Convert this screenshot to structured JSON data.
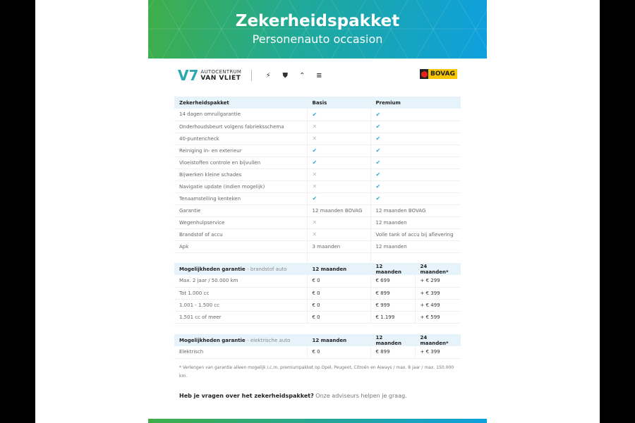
{
  "header": {
    "title": "Zekerheidspakket",
    "subtitle": "Personenauto occasion"
  },
  "logos": {
    "dealer_line1": "AUTOCENTRUM",
    "dealer_line2": "VAN VLIET",
    "brands": [
      "opel-logo",
      "peugeot-logo",
      "citroen-logo",
      "aiways-logo"
    ],
    "bovag": "BOVAG"
  },
  "package_table": {
    "headers": [
      "Zekerheidspakket",
      "Basis",
      "Premium"
    ],
    "rows": [
      {
        "label": "14 dagen omruilgarantie",
        "basis": "check",
        "premium": "check"
      },
      {
        "label": "Onderhoudsbeurt volgens fabrieksschema",
        "basis": "cross",
        "premium": "check"
      },
      {
        "label": "40-puntencheck",
        "basis": "cross",
        "premium": "check"
      },
      {
        "label": "Reiniging in- en exterieur",
        "basis": "check",
        "premium": "check"
      },
      {
        "label": "Vloeistoffen controle en bijvullen",
        "basis": "check",
        "premium": "check"
      },
      {
        "label": "Bijwerken kleine schades",
        "basis": "cross",
        "premium": "check"
      },
      {
        "label": "Navigatie update (indien mogelijk)",
        "basis": "cross",
        "premium": "check"
      },
      {
        "label": "Tenaamstelling kenteken",
        "basis": "check",
        "premium": "check"
      },
      {
        "label": "Garantie",
        "basis": "12 maanden BOVAG",
        "premium": "12 maanden BOVAG"
      },
      {
        "label": "Wegenhulpservice",
        "basis": "cross",
        "premium": "12 maanden"
      },
      {
        "label": "Brandstof of accu",
        "basis": "cross",
        "premium": "Volle tank of accu bij aflevering"
      },
      {
        "label": "Apk",
        "basis": "3 maanden",
        "premium": "12 maanden"
      }
    ]
  },
  "fuel_table": {
    "title": "Mogelijkheden garantie",
    "subtitle": "- brandstof auto",
    "headers": [
      "12 maanden",
      "12 maanden",
      "24 maanden*"
    ],
    "rows": [
      [
        "Max. 2 jaar / 50.000 km",
        "€ 0",
        "€ 699",
        "+ € 299"
      ],
      [
        "Tot 1.000 cc",
        "€ 0",
        "€ 899",
        "+ € 399"
      ],
      [
        "1.001 - 1.500 cc",
        "€ 0",
        "€ 999",
        "+ € 499"
      ],
      [
        "1.501 cc of meer",
        "€ 0",
        "€ 1.199",
        "+ € 599"
      ]
    ]
  },
  "electric_table": {
    "title": "Mogelijkheden garantie",
    "subtitle": "- elektrische auto",
    "headers": [
      "12 maanden",
      "12 maanden",
      "24 maanden*"
    ],
    "rows": [
      [
        "Elektrisch",
        "€ 0",
        "€ 899",
        "+ € 399"
      ]
    ]
  },
  "footnote": "* Verlengen van garantie alleen mogelijk i.c.m. premiumpakket op Opel, Peugeot, Citroën en Aiways / max. 8 jaar / max. 150.000 km.",
  "question": {
    "bold": "Heb je vragen over het zekerheidspakket?",
    "text": " Onze adviseurs helpen je graag."
  },
  "colors": {
    "green": "#3fae49",
    "blue": "#0ea0de",
    "check": "#2ea8d8",
    "header_row": "#e6f3fb"
  }
}
